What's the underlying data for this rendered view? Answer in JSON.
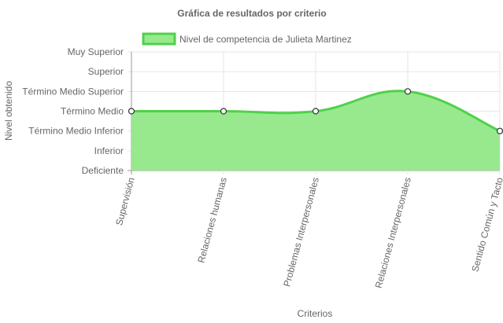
{
  "chart_data": {
    "type": "area",
    "title": "Gráfica de resultados por criterio",
    "xlabel": "Criterios",
    "ylabel": "Nivel obtenido",
    "y_levels": [
      "Deficiente",
      "Inferior",
      "Término Medio Inferior",
      "Término Medio",
      "Término Medio Superior",
      "Superior",
      "Muy Superior"
    ],
    "ylim": [
      0,
      6
    ],
    "categories": [
      "Supervisión",
      "Relaciones humanas",
      "Problemas Interpersonales",
      "Relaciones Interpersonales",
      "Sentido Común y Tacto"
    ],
    "series": [
      {
        "name": "Nivel de competencia de Julieta Martinez",
        "values": [
          3,
          3,
          3,
          4,
          2
        ]
      }
    ],
    "grid": true,
    "legend_position": "top",
    "colors": {
      "fill": "#98e98e",
      "line": "#4fd14a",
      "grid": "#e6e6e6",
      "axis": "#999999",
      "text": "#666666"
    }
  }
}
